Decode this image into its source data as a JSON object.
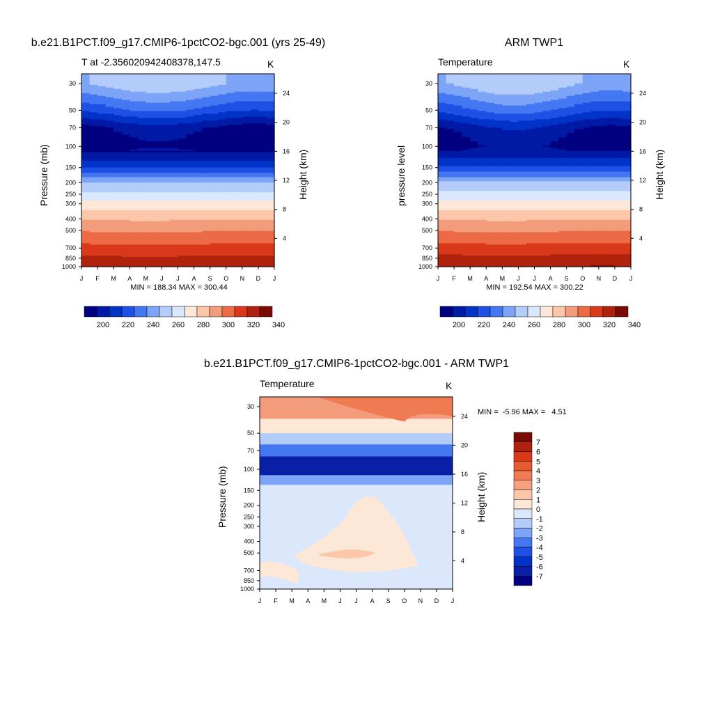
{
  "months": [
    "J",
    "F",
    "M",
    "A",
    "M",
    "J",
    "J",
    "A",
    "S",
    "O",
    "N",
    "D",
    "J"
  ],
  "pressure_levels": [
    30,
    50,
    70,
    100,
    150,
    200,
    250,
    300,
    400,
    500,
    700,
    850,
    1000
  ],
  "height_ticks": [
    4,
    8,
    12,
    16,
    20,
    24
  ],
  "colors": {
    "temp_palette": [
      "#000080",
      "#001aa6",
      "#0233c8",
      "#1f50e6",
      "#4477f2",
      "#7da4f7",
      "#b4ccfa",
      "#dbe8fc",
      "#fde7d6",
      "#fbc6aa",
      "#f39c7b",
      "#ec6b47",
      "#d9391a",
      "#b0220d",
      "#7a0b04"
    ],
    "diff_palette": [
      "#000080",
      "#0a1fa8",
      "#0233c8",
      "#1f50e6",
      "#4477f2",
      "#7da4f7",
      "#b4ccfa",
      "#dbe8fc",
      "#fde7d6",
      "#fbc6aa",
      "#f6a07d",
      "#ee7b52",
      "#e85a30",
      "#d9391a",
      "#b0220d",
      "#7a0b04"
    ]
  },
  "panels": [
    {
      "title": "b.e21.B1PCT.f09_g17.CMIP6-1pctCO2-bgc.001 (yrs 25-49)",
      "left_label": "T at -2.356020942408378,147.5",
      "units": "K",
      "y_label": "Pressure (mb)",
      "right_label": "Height (km)",
      "stats": "MIN = 188.34 MAX = 300.44",
      "colorbar_labels": [
        "200",
        "220",
        "240",
        "260",
        "280",
        "300",
        "320",
        "340"
      ]
    },
    {
      "title": "ARM TWP1",
      "left_label": "Temperature",
      "units": "K",
      "y_label": "pressure level",
      "right_label": "Height (km)",
      "stats": "MIN = 192.54 MAX = 300.22",
      "colorbar_labels": [
        "200",
        "220",
        "240",
        "260",
        "280",
        "300",
        "320",
        "340"
      ]
    },
    {
      "title": "b.e21.B1PCT.f09_g17.CMIP6-1pctCO2-bgc.001 - ARM TWP1",
      "left_label": "Temperature",
      "units": "K",
      "y_label": "Pressure (mb)",
      "right_label": "Height (km)",
      "stats": "MIN =  -5.96 MAX =   4.51",
      "colorbar_labels": [
        "7",
        "6",
        "5",
        "4",
        "3",
        "2",
        "1",
        "0",
        "-1",
        "-2",
        "-3",
        "-4",
        "-5",
        "-6",
        "-7"
      ]
    }
  ],
  "chart_data": [
    {
      "type": "heatmap",
      "title": "b.e21.B1PCT.f09_g17.CMIP6-1pctCO2-bgc.001 (yrs 25-49)",
      "variable": "T at -2.356020942408378,147.5",
      "units": "K",
      "xlabel": "",
      "ylabel": "Pressure (mb)",
      "ylabel_right": "Height (km)",
      "x": [
        "J",
        "F",
        "M",
        "A",
        "M",
        "J",
        "J",
        "A",
        "S",
        "O",
        "N",
        "D",
        "J"
      ],
      "y": [
        30,
        50,
        70,
        100,
        150,
        200,
        250,
        300,
        400,
        500,
        700,
        850,
        1000
      ],
      "y_scale": "log",
      "min": 188.34,
      "max": 300.44,
      "colorbar_levels": [
        195,
        200,
        205,
        210,
        215,
        220,
        230,
        240,
        250,
        260,
        270,
        280,
        290,
        300,
        320,
        340
      ],
      "profile": [
        [
          1000,
          300
        ],
        [
          850,
          292
        ],
        [
          700,
          283
        ],
        [
          500,
          269
        ],
        [
          400,
          259
        ],
        [
          300,
          243
        ],
        [
          250,
          232
        ],
        [
          200,
          220
        ],
        [
          150,
          205
        ],
        [
          100,
          191
        ],
        [
          70,
          195
        ],
        [
          50,
          208
        ],
        [
          30,
          222
        ]
      ]
    },
    {
      "type": "heatmap",
      "title": "ARM TWP1",
      "variable": "Temperature",
      "units": "K",
      "xlabel": "",
      "ylabel": "pressure level",
      "ylabel_right": "Height (km)",
      "x": [
        "J",
        "F",
        "M",
        "A",
        "M",
        "J",
        "J",
        "A",
        "S",
        "O",
        "N",
        "D",
        "J"
      ],
      "y": [
        30,
        50,
        70,
        100,
        150,
        200,
        250,
        300,
        400,
        500,
        700,
        850,
        1000
      ],
      "y_scale": "log",
      "min": 192.54,
      "max": 300.22,
      "colorbar_levels": [
        195,
        200,
        205,
        210,
        215,
        220,
        230,
        240,
        250,
        260,
        270,
        280,
        290,
        300,
        320,
        340
      ],
      "profile": [
        [
          1000,
          300
        ],
        [
          850,
          293
        ],
        [
          700,
          284
        ],
        [
          500,
          269
        ],
        [
          400,
          259
        ],
        [
          300,
          243
        ],
        [
          250,
          233
        ],
        [
          200,
          221
        ],
        [
          150,
          206
        ],
        [
          100,
          193
        ],
        [
          70,
          197
        ],
        [
          50,
          209
        ],
        [
          30,
          222
        ]
      ]
    },
    {
      "type": "heatmap",
      "title": "b.e21.B1PCT.f09_g17.CMIP6-1pctCO2-bgc.001 - ARM TWP1",
      "variable": "Temperature",
      "units": "K",
      "xlabel": "",
      "ylabel": "Pressure (mb)",
      "ylabel_right": "Height (km)",
      "x": [
        "J",
        "F",
        "M",
        "A",
        "M",
        "J",
        "J",
        "A",
        "S",
        "O",
        "N",
        "D",
        "J"
      ],
      "y": [
        30,
        50,
        70,
        100,
        150,
        200,
        250,
        300,
        400,
        500,
        700,
        850,
        1000
      ],
      "y_scale": "log",
      "min": -5.96,
      "max": 4.51,
      "colorbar_levels": [
        -7,
        -6,
        -5,
        -4,
        -3,
        -2,
        -1,
        0,
        1,
        2,
        3,
        4,
        5,
        6,
        7
      ]
    }
  ]
}
